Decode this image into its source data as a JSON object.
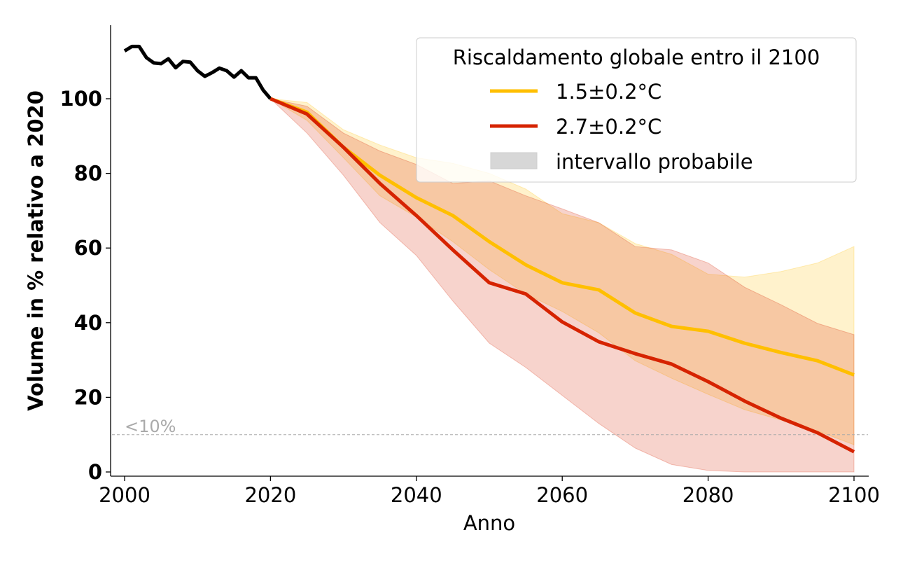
{
  "chart_data": {
    "type": "line",
    "xlabel": "Anno",
    "ylabel": "Volume in % relativo a 2020",
    "xlim": [
      1998,
      2102
    ],
    "ylim": [
      -1,
      120
    ],
    "xticks": [
      2000,
      2020,
      2040,
      2060,
      2080,
      2100
    ],
    "yticks": [
      0,
      20,
      40,
      60,
      80,
      100
    ],
    "grid": false,
    "legend": {
      "title": "Riscaldamento globale entro il 2100",
      "placement": "top-right",
      "entries": [
        "1.5±0.2°C",
        "2.7±0.2°C",
        "intervallo probabile"
      ]
    },
    "threshold": {
      "value": 10,
      "label": "<10%",
      "color": "#aaaaaa"
    },
    "historical": {
      "color": "#000000",
      "x": [
        2000,
        2001,
        2002,
        2003,
        2004,
        2005,
        2006,
        2007,
        2008,
        2009,
        2010,
        2011,
        2012,
        2013,
        2014,
        2015,
        2016,
        2017,
        2018,
        2019,
        2020
      ],
      "y": [
        112.8,
        114,
        114,
        111,
        109.6,
        109.4,
        110.7,
        108.3,
        110,
        109.8,
        107.5,
        106,
        107,
        108.2,
        107.5,
        105.8,
        107.5,
        105.6,
        105.6,
        102.3,
        100
      ]
    },
    "x": [
      2020,
      2025,
      2030,
      2035,
      2040,
      2045,
      2050,
      2055,
      2060,
      2065,
      2070,
      2075,
      2080,
      2085,
      2090,
      2095,
      2100
    ],
    "series": [
      {
        "name": "1.5±0.2°C",
        "color": "#FFBF00",
        "band_color": "#FFC000",
        "median": [
          100,
          96.4,
          87,
          79.5,
          73.5,
          68.7,
          61.7,
          55.5,
          50.7,
          48.8,
          42.6,
          39,
          37.7,
          34.5,
          32,
          29.8,
          26
        ],
        "upper": [
          100,
          99,
          91.7,
          87.6,
          84.2,
          82.7,
          80,
          75.8,
          69.2,
          66.8,
          61.2,
          58.3,
          53,
          52.2,
          53.7,
          56,
          60.4
        ],
        "lower": [
          100,
          94.2,
          84.2,
          74,
          68.3,
          61.7,
          54.2,
          47.7,
          43,
          37.3,
          29.8,
          25.1,
          20.8,
          16.7,
          13.9,
          11,
          7.3
        ]
      },
      {
        "name": "2.7±0.2°C",
        "color": "#D62300",
        "band_color": "#D62300",
        "median": [
          100,
          95.9,
          87,
          77.3,
          68.7,
          59.5,
          50.7,
          47.7,
          40.2,
          34.9,
          31.7,
          28.9,
          24.2,
          19,
          14.4,
          10.5,
          5.4
        ],
        "upper": [
          100,
          98,
          90.8,
          86,
          82.4,
          77.3,
          78,
          74,
          70.5,
          66.8,
          60.4,
          59.5,
          56,
          49.5,
          44.8,
          39.8,
          36.8
        ],
        "lower": [
          100,
          90.8,
          79.5,
          66.8,
          58,
          45.8,
          34.5,
          28,
          20.5,
          13,
          6.4,
          2,
          0.4,
          0,
          0,
          0,
          0
        ]
      }
    ]
  }
}
